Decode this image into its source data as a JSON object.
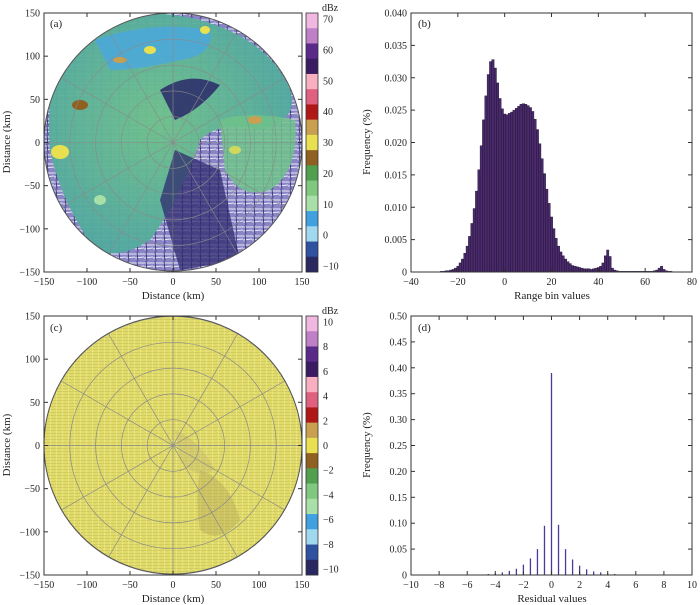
{
  "figure": {
    "panels": [
      "(a)",
      "(b)",
      "(c)",
      "(d)"
    ]
  },
  "colors": {
    "axis": "#333333",
    "grid": "#8a8a8a",
    "hist_fill": "#4a2a6a",
    "hist_edge": "#1a1030",
    "residual_field": "#e3de6b"
  },
  "chart_data": [
    {
      "panel": "(a)",
      "type": "heatmap",
      "description_label": "radar reflectivity PPI",
      "xlabel": "Distance (km)",
      "ylabel": "Distance (km)",
      "xlim": [
        -150,
        150
      ],
      "ylim": [
        -150,
        150
      ],
      "xticks": [
        -150,
        -100,
        -50,
        0,
        50,
        100,
        150
      ],
      "yticks": [
        150,
        100,
        50,
        0,
        -50,
        -100,
        -150
      ],
      "radius_km": 150,
      "colorbar": {
        "unit": "dBz",
        "ticks": [
          70,
          60,
          50,
          40,
          30,
          20,
          10,
          0,
          -10
        ],
        "colors": [
          "#f0b8e0",
          "#c080c8",
          "#5a2a8a",
          "#3a1a60",
          "#f8b0c0",
          "#e06080",
          "#b01818",
          "#c8a050",
          "#e8e050",
          "#906020",
          "#50a050",
          "#80c880",
          "#a8e0a8",
          "#40a0e0",
          "#a0d8f0",
          "#3050a0",
          "#2a2860"
        ]
      }
    },
    {
      "panel": "(b)",
      "type": "bar",
      "xlabel": "Range bin values",
      "ylabel": "Frequency (%)",
      "xlim": [
        -40,
        80
      ],
      "ylim": [
        0,
        0.04
      ],
      "xticks": [
        -40,
        -20,
        0,
        20,
        40,
        60,
        80
      ],
      "yticks": [
        0,
        0.005,
        0.01,
        0.015,
        0.02,
        0.025,
        0.03,
        0.035,
        0.04
      ],
      "ytick_labels": [
        "0",
        "0.005",
        "0.010",
        "0.015",
        "0.020",
        "0.025",
        "0.030",
        "0.035",
        "0.040"
      ],
      "bin_width": 1,
      "x": [
        -27,
        -26,
        -25,
        -24,
        -23,
        -22,
        -21,
        -20,
        -19,
        -18,
        -17,
        -16,
        -15,
        -14,
        -13,
        -12,
        -11,
        -10,
        -9,
        -8,
        -7,
        -6,
        -5,
        -4,
        -3,
        -2,
        -1,
        0,
        1,
        2,
        3,
        4,
        5,
        6,
        7,
        8,
        9,
        10,
        11,
        12,
        13,
        14,
        15,
        16,
        17,
        18,
        19,
        20,
        21,
        22,
        23,
        24,
        25,
        26,
        27,
        28,
        29,
        30,
        31,
        32,
        33,
        34,
        35,
        36,
        37,
        38,
        39,
        40,
        41,
        42,
        43,
        44,
        45,
        46,
        47,
        48,
        49,
        50,
        51,
        52,
        53,
        54,
        55,
        56,
        57,
        58,
        59,
        60,
        61,
        62,
        63,
        64,
        65,
        66,
        67,
        68,
        69,
        70,
        71
      ],
      "values": [
        0.0001,
        0.0001,
        0.0002,
        0.0002,
        0.0003,
        0.0004,
        0.0006,
        0.0009,
        0.0014,
        0.002,
        0.0029,
        0.004,
        0.0055,
        0.0075,
        0.0098,
        0.0125,
        0.0158,
        0.0195,
        0.0235,
        0.0272,
        0.0305,
        0.0325,
        0.0328,
        0.0315,
        0.0292,
        0.0268,
        0.0252,
        0.0244,
        0.0243,
        0.0245,
        0.0247,
        0.025,
        0.0253,
        0.0256,
        0.0259,
        0.026,
        0.0259,
        0.0257,
        0.0254,
        0.0248,
        0.0236,
        0.022,
        0.0198,
        0.0175,
        0.0152,
        0.0128,
        0.0106,
        0.0085,
        0.0067,
        0.0052,
        0.004,
        0.0031,
        0.0025,
        0.002,
        0.0016,
        0.0013,
        0.001,
        0.0009,
        0.0008,
        0.0007,
        0.0006,
        0.0005,
        0.0005,
        0.0005,
        0.0004,
        0.0005,
        0.0006,
        0.0007,
        0.0009,
        0.0014,
        0.0025,
        0.0034,
        0.0024,
        0.0006,
        0.0003,
        0.0002,
        0.0001,
        0.0001,
        0.0001,
        0.0001,
        0.0001,
        0.0001,
        0.0001,
        0.0001,
        0.0001,
        0.0001,
        0.0001,
        0.0001,
        0.0001,
        0.0001,
        0.0001,
        0.0002,
        0.0003,
        0.0006,
        0.0009,
        0.0004,
        0.0002,
        0.0001,
        0.0001
      ]
    },
    {
      "panel": "(c)",
      "type": "heatmap",
      "description_label": "residual PPI",
      "xlabel": "Distance (km)",
      "ylabel": "Distance (km)",
      "xlim": [
        -150,
        150
      ],
      "ylim": [
        -150,
        150
      ],
      "xticks": [
        -150,
        -100,
        -50,
        0,
        50,
        100,
        150
      ],
      "yticks": [
        150,
        100,
        50,
        0,
        -50,
        -100,
        -150
      ],
      "radius_km": 150,
      "range_rings_km": [
        30,
        60,
        90,
        120,
        150
      ],
      "colorbar": {
        "unit": "dBz",
        "ticks": [
          10,
          8,
          6,
          4,
          2,
          0,
          -2,
          -4,
          -6,
          -8,
          -10
        ],
        "colors": [
          "#f0b8e0",
          "#c080c8",
          "#5a2a8a",
          "#3a1a60",
          "#f8b0c0",
          "#e06080",
          "#b01818",
          "#c8a050",
          "#e8e050",
          "#906020",
          "#50a050",
          "#80c880",
          "#a8e0a8",
          "#40a0e0",
          "#a0d8f0",
          "#3050a0",
          "#2a2860"
        ]
      }
    },
    {
      "panel": "(d)",
      "type": "bar",
      "xlabel": "Residual values",
      "ylabel": "Frequency (%)",
      "xlim": [
        -10,
        10
      ],
      "ylim": [
        0,
        0.5
      ],
      "xticks": [
        -10,
        -8,
        -6,
        -4,
        -2,
        0,
        2,
        4,
        6,
        8,
        10
      ],
      "yticks": [
        0,
        0.05,
        0.1,
        0.15,
        0.2,
        0.25,
        0.3,
        0.35,
        0.4,
        0.45,
        0.5
      ],
      "ytick_labels": [
        "0",
        "0.05",
        "0.10",
        "0.15",
        "0.20",
        "0.25",
        "0.30",
        "0.35",
        "0.40",
        "0.45",
        "0.50"
      ],
      "x": [
        -4.5,
        -4,
        -3.5,
        -3,
        -2.5,
        -2,
        -1.5,
        -1,
        -0.5,
        0,
        0.5,
        1,
        1.5,
        2,
        2.5,
        3,
        3.5,
        4,
        4.5
      ],
      "values": [
        0.002,
        0.003,
        0.005,
        0.008,
        0.012,
        0.02,
        0.032,
        0.05,
        0.095,
        0.39,
        0.097,
        0.05,
        0.03,
        0.018,
        0.011,
        0.007,
        0.005,
        0.003,
        0.002
      ]
    }
  ]
}
